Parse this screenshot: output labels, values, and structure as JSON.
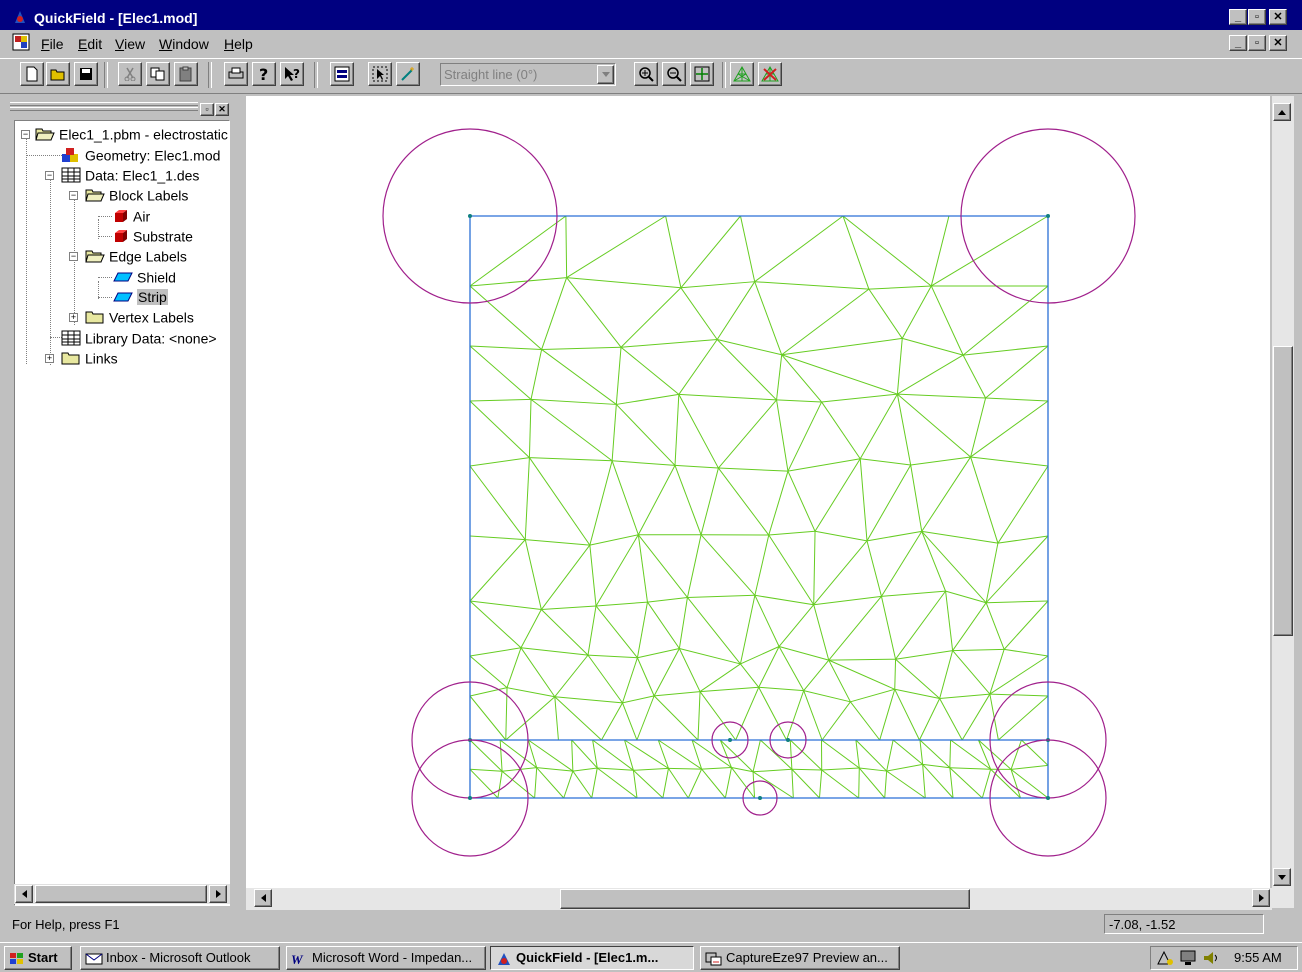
{
  "window": {
    "title": "QuickField - [Elec1.mod]",
    "caption_buttons": [
      "_",
      "▫",
      "✕"
    ],
    "mdi_buttons": [
      "_",
      "▫",
      "✕"
    ]
  },
  "menu": {
    "items": [
      {
        "label": "File",
        "accel": "F",
        "rest": "ile"
      },
      {
        "label": "Edit",
        "accel": "E",
        "rest": "dit"
      },
      {
        "label": "View",
        "accel": "V",
        "rest": "iew"
      },
      {
        "label": "Window",
        "accel": "W",
        "rest": "indow"
      },
      {
        "label": "Help",
        "accel": "H",
        "rest": "elp"
      }
    ]
  },
  "toolbar": {
    "line_type_value": "Straight line (0°)",
    "buttons": [
      "new-icon",
      "open-icon",
      "save-icon",
      "cut-icon",
      "copy-icon",
      "paste-icon",
      "print-icon",
      "help-icon",
      "context-help-icon",
      "model-icon",
      "select-icon",
      "wand-icon",
      "zoom-in-icon",
      "zoom-out-icon",
      "zoom-fit-icon",
      "build-mesh-icon",
      "remove-mesh-icon"
    ]
  },
  "tree": {
    "nodes": [
      {
        "label": "Elec1_1.pbm - electrostatic",
        "icon": "open-folder-icon",
        "expander": "−"
      },
      {
        "label": "Geometry: Elec1.mod",
        "icon": "geometry-icon",
        "expander": ""
      },
      {
        "label": "Data: Elec1_1.des",
        "icon": "table-icon",
        "expander": "−"
      },
      {
        "label": "Block Labels",
        "icon": "open-folder-icon",
        "expander": "−"
      },
      {
        "label": "Air",
        "icon": "block-label-icon",
        "expander": ""
      },
      {
        "label": "Substrate",
        "icon": "block-label-icon",
        "expander": ""
      },
      {
        "label": "Edge Labels",
        "icon": "open-folder-icon",
        "expander": "−"
      },
      {
        "label": "Shield",
        "icon": "edge-label-icon",
        "expander": ""
      },
      {
        "label": "Strip",
        "icon": "edge-label-icon",
        "expander": "",
        "selected": true
      },
      {
        "label": "Vertex Labels",
        "icon": "folder-icon",
        "expander": "+"
      },
      {
        "label": "Library Data: <none>",
        "icon": "table-icon",
        "expander": ""
      },
      {
        "label": "Links",
        "icon": "folder-icon",
        "expander": "+"
      }
    ]
  },
  "status": {
    "help_text": "For Help, press F1",
    "coordinates": "-7.08, -1.52"
  },
  "taskbar": {
    "start_label": "Start",
    "tasks": [
      {
        "label": "Inbox - Microsoft Outlook",
        "icon": "outlook-icon",
        "active": false
      },
      {
        "label": "Microsoft Word - Impedan...",
        "icon": "word-icon",
        "active": false
      },
      {
        "label": "QuickField - [Elec1.m...",
        "icon": "quickfield-icon",
        "active": true
      },
      {
        "label": "CaptureEze97 Preview an...",
        "icon": "capture-icon",
        "active": false
      }
    ],
    "clock": "9:55 AM"
  },
  "colors": {
    "titlebar": "#000080",
    "mesh": "#66cc22",
    "geometry_edge": "#2a6fd6",
    "vertex_circle": "#a0208c",
    "vertex_dot": "#108080"
  }
}
